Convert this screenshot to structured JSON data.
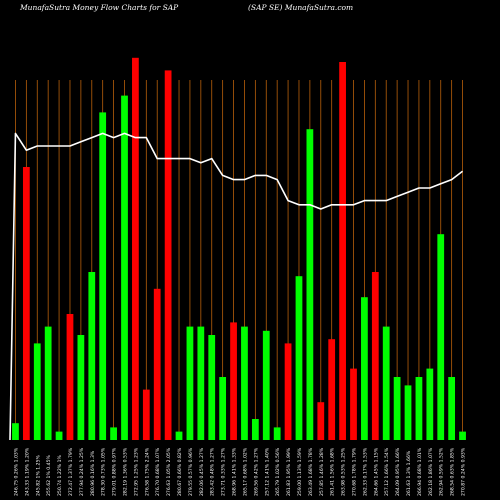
{
  "header": {
    "left": "MunafaSutra  Money Flow  Charts for SAP",
    "right": "(SAP SE) MunafaSutra.com"
  },
  "chart_data": {
    "type": "bar",
    "title": "MunafaSutra  Money Flow  Charts for SAP",
    "subtitle": "(SAP SE) MunafaSutra.com",
    "background": "#000000",
    "grid": true,
    "grid_color": "#b8600b",
    "colors": {
      "up": "#00ff00",
      "down": "#ff0000",
      "line": "#ffffff"
    },
    "ylim": [
      0,
      100
    ],
    "categories": [
      "246.75 0.26% 1.03%",
      "243.33 1.19% 1.20%",
      "245.82 1% 1.25%",
      "255.62 1% 0.45%",
      "250.74 1.22% 1%",
      "272.47 1.37% 1.79%",
      "277.94 0.24% 1.25%",
      "280.96 0.16% 1.3%",
      "278.30 0.73% 1.05%",
      "279.01 0.88% 0.97%",
      "282.19 1.36% 0.53%",
      "272.95 1.25% 1.23%",
      "276.58 1.75% 2.24%",
      "276.70 0.68% 1.07%",
      "276.63 1.05% 2.05%",
      "280.67 0.66% 0.82%",
      "279.55 0.57% 0.96%",
      "282.06 0.45% 1.27%",
      "283.42 0.48% 1.27%",
      "273.71 0.33% 1.27%",
      "268.96 1.41% 1.33%",
      "265.17 0.68% 1.02%",
      "269.56 0.42% 1.27%",
      "257.12 1.41% 1.40%",
      "265.79 1.02% 0.56%",
      "261.83 1.95% 1.99%",
      "259.00 1.13% 1.59%",
      "263.49 1.68% 1.78%",
      "257.85 1.46% 1.28%",
      "261.41 1.56% 1.68%",
      "263.98 0.53% 1.25%",
      "270.68 1.78% 1.79%",
      "262.33 0.17% 1.53%",
      "264.66 1.45% 1.15%",
      "257.12 1.66% 1.54%",
      "264.09 0.95% 1.66%",
      "261.63 1.3% 1.66%",
      "266.94 0.68% 1.01%",
      "262.18 1.86% 1.07%",
      "262.94 0.59% 1.52%",
      "268.54 0.63% 1.85%",
      "270.87 0.24% 0.93%"
    ],
    "series": [
      {
        "values": [
          4,
          65,
          23,
          27,
          2,
          30,
          25,
          40,
          78,
          3,
          82,
          91,
          12,
          36,
          88,
          2,
          27,
          27,
          25,
          15,
          28,
          27,
          5,
          26,
          3,
          23,
          39,
          74,
          9,
          24,
          90,
          17,
          34,
          40,
          27,
          15,
          13,
          15,
          17,
          49,
          15,
          2
        ],
        "direction": [
          "up",
          "down",
          "up",
          "up",
          "up",
          "down",
          "up",
          "up",
          "up",
          "up",
          "up",
          "down",
          "down",
          "down",
          "down",
          "up",
          "up",
          "up",
          "up",
          "up",
          "down",
          "up",
          "up",
          "up",
          "up",
          "down",
          "up",
          "up",
          "down",
          "down",
          "down",
          "down",
          "up",
          "down",
          "up",
          "up",
          "up",
          "up",
          "up",
          "up",
          "up",
          "up"
        ]
      },
      {
        "name": "",
        "values": [
          73,
          69,
          70,
          70,
          70,
          70,
          71,
          72,
          73,
          72,
          73,
          72,
          72,
          67,
          67,
          67,
          67,
          66,
          67,
          63,
          62,
          62,
          63,
          63,
          62,
          57,
          56,
          56,
          55,
          56,
          56,
          56,
          57,
          57,
          57,
          58,
          59,
          60,
          60,
          61,
          62,
          64
        ]
      }
    ]
  }
}
